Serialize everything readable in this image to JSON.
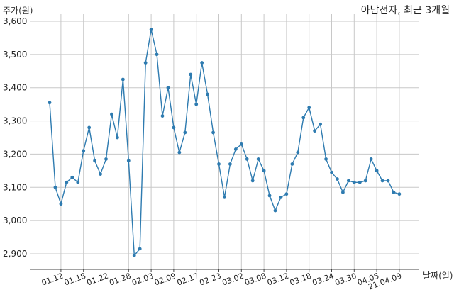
{
  "chart_data": {
    "type": "line",
    "title": "아남전자, 최근 3개월",
    "xlabel": "날짜(일)",
    "ylabel": "주가(원)",
    "ylim": [
      2850,
      3600
    ],
    "yticks": [
      2900,
      3000,
      3100,
      3200,
      3300,
      3400,
      3500,
      3600
    ],
    "ytick_labels": [
      "2,900",
      "3,000",
      "3,100",
      "3,200",
      "3,300",
      "3,400",
      "3,500",
      "3,600"
    ],
    "xtick_labels": [
      "01.12",
      "01.18",
      "01.22",
      "01.28",
      "02.03",
      "02.09",
      "02.17",
      "02.23",
      "03.02",
      "03.08",
      "03.12",
      "03.18",
      "03.24",
      "03.30",
      "04.05",
      "21.04.09"
    ],
    "xtick_index": [
      2,
      6,
      10,
      14,
      18,
      22,
      26,
      30,
      34,
      38,
      42,
      46,
      50,
      54,
      58,
      62
    ],
    "grid": true,
    "color": "#2e7bb0",
    "series": [
      {
        "values": [
          3355,
          3100,
          3050,
          3115,
          3130,
          3115,
          3210,
          3280,
          3180,
          3140,
          3185,
          3320,
          3250,
          3425,
          3180,
          2895,
          2915,
          3475,
          3575,
          3500,
          3315,
          3400,
          3280,
          3205,
          3265,
          3440,
          3350,
          3475,
          3380,
          3265,
          3170,
          3070,
          3170,
          3215,
          3230,
          3185,
          3120,
          3185,
          3150,
          3075,
          3030,
          3070,
          3080,
          3170,
          3205,
          3310,
          3340,
          3270,
          3290,
          3185,
          3145,
          3125,
          3085,
          3120,
          3115,
          3115,
          3120,
          3185,
          3150,
          3120,
          3120,
          3085,
          3080
        ]
      }
    ]
  }
}
